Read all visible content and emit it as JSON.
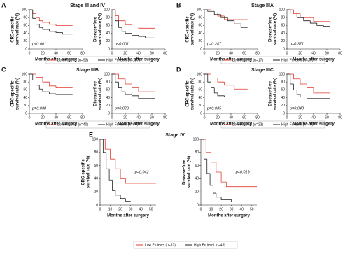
{
  "chart_data": [
    {
      "panel": "A",
      "title": "Stage III and IV",
      "type": "line",
      "xlabel": "Months after surgery",
      "xlim": [
        0,
        80
      ],
      "xticks": [
        0,
        20,
        40,
        60,
        80
      ],
      "ylim": [
        0,
        100
      ],
      "yticks": [
        0,
        20,
        40,
        60,
        80,
        100
      ],
      "series": [
        {
          "name": "Low Fn level (n=93)",
          "color": "#e03c31"
        },
        {
          "name": "High Fn level (n=187)",
          "color": "#222222"
        }
      ],
      "plots": [
        {
          "ylabel": [
            "CRC-specific",
            "survival rate (%)"
          ],
          "pvalue": "p<0.001",
          "lines": [
            {
              "x": [
                0,
                5,
                10,
                15,
                20,
                30,
                40,
                65
              ],
              "values": [
                100,
                90,
                80,
                72,
                68,
                63,
                60,
                60
              ]
            },
            {
              "x": [
                0,
                5,
                10,
                15,
                20,
                30,
                40,
                50,
                65
              ],
              "values": [
                100,
                78,
                63,
                55,
                50,
                45,
                42,
                38,
                38
              ]
            }
          ]
        },
        {
          "ylabel": [
            "Disease-free",
            "survival rate (%)"
          ],
          "pvalue": "p<0.001",
          "lines": [
            {
              "x": [
                0,
                5,
                10,
                20,
                30,
                40,
                65
              ],
              "values": [
                100,
                85,
                72,
                62,
                56,
                53,
                53
              ]
            },
            {
              "x": [
                0,
                5,
                10,
                15,
                20,
                30,
                40,
                50,
                65
              ],
              "values": [
                100,
                72,
                55,
                45,
                40,
                35,
                32,
                28,
                28
              ]
            }
          ]
        }
      ]
    },
    {
      "panel": "B",
      "title": "Stage IIIA",
      "type": "line",
      "xlabel": "Months after surgery",
      "xlim": [
        0,
        80
      ],
      "xticks": [
        0,
        20,
        40,
        60,
        80
      ],
      "ylim": [
        0,
        100
      ],
      "yticks": [
        0,
        20,
        40,
        60,
        80,
        100
      ],
      "series": [
        {
          "name": "Low Fn level (n=17)",
          "color": "#e03c31"
        },
        {
          "name": "High Fn level (n=27)",
          "color": "#222222"
        }
      ],
      "plots": [
        {
          "ylabel": [
            "CRC-specific",
            "survival rate (%)"
          ],
          "pvalue": "p=0.247",
          "lines": [
            {
              "x": [
                0,
                10,
                20,
                30,
                65
              ],
              "values": [
                100,
                92,
                84,
                75,
                75
              ]
            },
            {
              "x": [
                0,
                5,
                15,
                25,
                35,
                45,
                55,
                65
              ],
              "values": [
                100,
                96,
                88,
                80,
                72,
                64,
                55,
                55
              ]
            }
          ]
        },
        {
          "ylabel": [
            "Disease-free",
            "survival rate (%)"
          ],
          "pvalue": "p=0.371",
          "lines": [
            {
              "x": [
                0,
                10,
                20,
                40,
                65
              ],
              "values": [
                100,
                90,
                80,
                70,
                65
              ]
            },
            {
              "x": [
                0,
                5,
                15,
                25,
                35,
                45,
                55,
                65
              ],
              "values": [
                100,
                92,
                80,
                72,
                66,
                60,
                58,
                58
              ]
            }
          ]
        }
      ]
    },
    {
      "panel": "C",
      "title": "Stage IIIB",
      "type": "line",
      "xlabel": "Months after surgery",
      "xlim": [
        0,
        80
      ],
      "xticks": [
        0,
        20,
        40,
        60,
        80
      ],
      "ylim": [
        0,
        100
      ],
      "yticks": [
        0,
        20,
        40,
        60,
        80,
        100
      ],
      "series": [
        {
          "name": "Low Fn level (n=40)",
          "color": "#e03c31"
        },
        {
          "name": "High Fn level (n=64)",
          "color": "#222222"
        }
      ],
      "plots": [
        {
          "ylabel": [
            "CRC-specific",
            "survival rate (%)"
          ],
          "pvalue": "p=0.038",
          "lines": [
            {
              "x": [
                0,
                10,
                20,
                30,
                40,
                65
              ],
              "values": [
                100,
                92,
                80,
                70,
                65,
                65
              ]
            },
            {
              "x": [
                0,
                5,
                10,
                15,
                20,
                30,
                40,
                65
              ],
              "values": [
                100,
                85,
                72,
                62,
                55,
                50,
                48,
                48
              ]
            }
          ]
        },
        {
          "ylabel": [
            "Disease-free",
            "survival rate (%)"
          ],
          "pvalue": "p=0.029",
          "lines": [
            {
              "x": [
                0,
                10,
                20,
                30,
                40,
                65
              ],
              "values": [
                100,
                88,
                75,
                65,
                55,
                55
              ]
            },
            {
              "x": [
                0,
                5,
                10,
                15,
                20,
                30,
                40,
                65
              ],
              "values": [
                100,
                80,
                65,
                55,
                48,
                45,
                38,
                38
              ]
            }
          ]
        }
      ]
    },
    {
      "panel": "D",
      "title": "Stage IIIC",
      "type": "line",
      "xlabel": "Months after surgery",
      "xlim": [
        0,
        80
      ],
      "xticks": [
        0,
        20,
        40,
        60,
        80
      ],
      "ylim": [
        0,
        100
      ],
      "yticks": [
        0,
        20,
        40,
        60,
        80,
        100
      ],
      "series": [
        {
          "name": "Low Fn level (n=23)",
          "color": "#e03c31"
        },
        {
          "name": "High Fn level (n=47)",
          "color": "#222222"
        }
      ],
      "plots": [
        {
          "ylabel": [
            "CRC-specific",
            "survival rate (%)"
          ],
          "pvalue": "p=0.035",
          "lines": [
            {
              "x": [
                0,
                10,
                20,
                30,
                45,
                65
              ],
              "values": [
                100,
                90,
                80,
                72,
                62,
                62
              ]
            },
            {
              "x": [
                0,
                5,
                10,
                15,
                20,
                30,
                65
              ],
              "values": [
                100,
                80,
                65,
                52,
                45,
                42,
                42
              ]
            }
          ]
        },
        {
          "ylabel": [
            "Disease-free",
            "survival rate (%)"
          ],
          "pvalue": "p=0.048",
          "lines": [
            {
              "x": [
                0,
                10,
                20,
                30,
                40,
                65
              ],
              "values": [
                100,
                88,
                75,
                65,
                52,
                52
              ]
            },
            {
              "x": [
                0,
                5,
                10,
                15,
                20,
                30,
                65
              ],
              "values": [
                100,
                75,
                60,
                48,
                42,
                38,
                38
              ]
            }
          ]
        }
      ]
    },
    {
      "panel": "E",
      "title": "Stage IV",
      "type": "line",
      "xlabel": "Months after surgery",
      "xlim": [
        0,
        55
      ],
      "xticks": [
        0,
        10,
        20,
        30,
        40,
        50
      ],
      "ylim": [
        0,
        100
      ],
      "yticks": [
        0,
        20,
        40,
        60,
        80,
        100
      ],
      "series": [
        {
          "name": "Low Fn level (n=13)",
          "color": "#e03c31"
        },
        {
          "name": "High Fn level (n=49)",
          "color": "#222222"
        }
      ],
      "plots": [
        {
          "ylabel": [
            "CRC-specific",
            "survival rate (%)"
          ],
          "pvalue": "p=0.042",
          "lines": [
            {
              "x": [
                0,
                5,
                10,
                15,
                20,
                25,
                55
              ],
              "values": [
                100,
                85,
                70,
                55,
                40,
                33,
                33
              ]
            },
            {
              "x": [
                0,
                3,
                6,
                9,
                12,
                15,
                20,
                25,
                30
              ],
              "values": [
                100,
                80,
                55,
                38,
                22,
                15,
                10,
                6,
                6
              ]
            }
          ]
        },
        {
          "ylabel": [
            "Disease-free",
            "survival rate (%)"
          ],
          "pvalue": "p=0.019",
          "lines": [
            {
              "x": [
                0,
                5,
                10,
                15,
                20,
                25,
                55
              ],
              "values": [
                100,
                80,
                65,
                50,
                35,
                28,
                28
              ]
            },
            {
              "x": [
                0,
                3,
                6,
                9,
                12,
                15,
                20,
                30
              ],
              "values": [
                100,
                70,
                48,
                30,
                18,
                12,
                8,
                5
              ]
            }
          ]
        }
      ]
    }
  ]
}
